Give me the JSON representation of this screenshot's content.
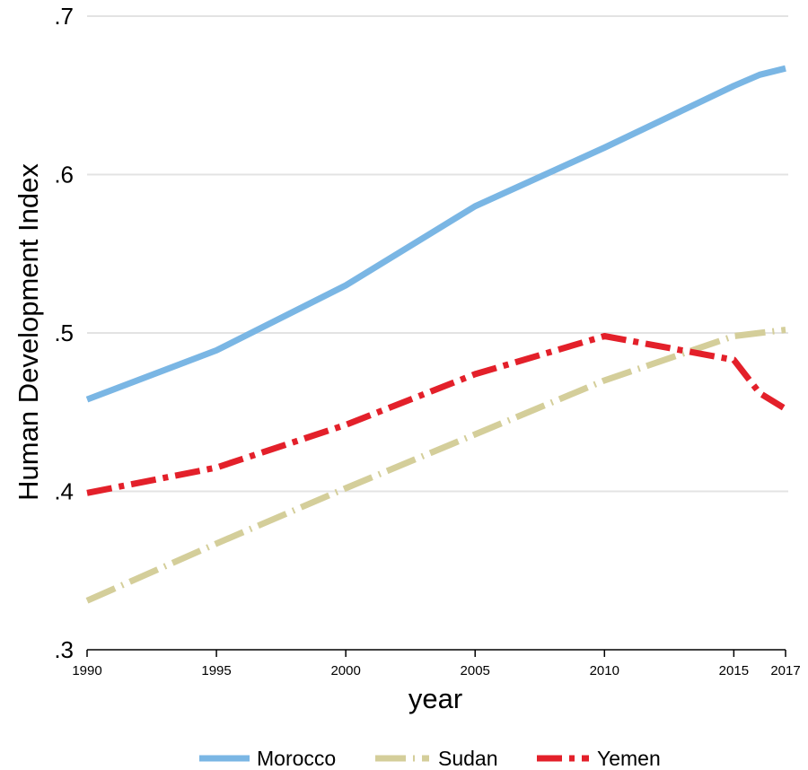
{
  "chart_data": {
    "type": "line",
    "title": "",
    "xlabel": "year",
    "ylabel": "Human Development Index",
    "xlim": [
      1990,
      2017
    ],
    "ylim": [
      0.3,
      0.7
    ],
    "xticks": [
      1990,
      1995,
      2000,
      2005,
      2010,
      2015,
      2017
    ],
    "xtick_labels": [
      "1990",
      "1995",
      "2000",
      "2005",
      "2010",
      "2015",
      "2017"
    ],
    "yticks": [
      0.3,
      0.4,
      0.5,
      0.6,
      0.7
    ],
    "ytick_labels": [
      ".3",
      ".4",
      ".5",
      ".6",
      ".7"
    ],
    "grid": "horizontal",
    "legend_position": "bottom",
    "series": [
      {
        "name": "Morocco",
        "color": "#7ab6e4",
        "style": "solid",
        "x": [
          1990,
          1995,
          2000,
          2005,
          2010,
          2015,
          2016,
          2017
        ],
        "y": [
          0.458,
          0.489,
          0.53,
          0.58,
          0.617,
          0.656,
          0.663,
          0.667
        ]
      },
      {
        "name": "Sudan",
        "color": "#d4ce9a",
        "style": "long-dash-dot",
        "x": [
          1990,
          1995,
          2000,
          2005,
          2010,
          2015,
          2016,
          2017
        ],
        "y": [
          0.331,
          0.367,
          0.402,
          0.436,
          0.47,
          0.498,
          0.5,
          0.502
        ]
      },
      {
        "name": "Yemen",
        "color": "#e3202a",
        "style": "dash-dot",
        "x": [
          1990,
          1995,
          2000,
          2005,
          2010,
          2015,
          2016,
          2017
        ],
        "y": [
          0.399,
          0.415,
          0.442,
          0.474,
          0.498,
          0.483,
          0.462,
          0.452
        ]
      }
    ]
  }
}
